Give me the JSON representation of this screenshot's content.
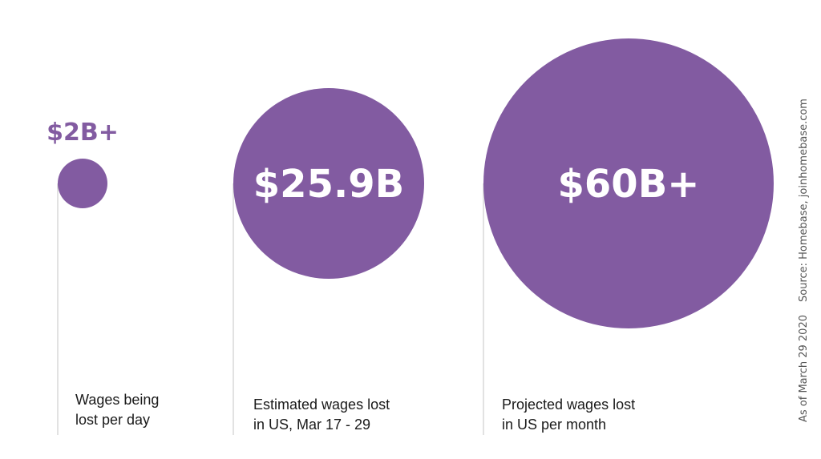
{
  "chart_data": {
    "type": "bubble",
    "title": "",
    "colors": {
      "bubble": "#825ba1",
      "value_on_bubble": "#ffffff",
      "value_outside": "#825ba1"
    },
    "items": [
      {
        "value": 2,
        "label": "$2B+",
        "caption": [
          "Wages being",
          "lost per day"
        ]
      },
      {
        "value": 25.9,
        "label": "$25.9B",
        "caption": [
          "Estimated wages lost",
          "in US, Mar 17 - 29"
        ]
      },
      {
        "value": 60,
        "label": "$60B+",
        "caption": [
          "Projected wages lost",
          "in US per month"
        ]
      }
    ]
  },
  "source": "Source: Homebase, joinhomebase.com",
  "as_of": "As of March 29 2020"
}
